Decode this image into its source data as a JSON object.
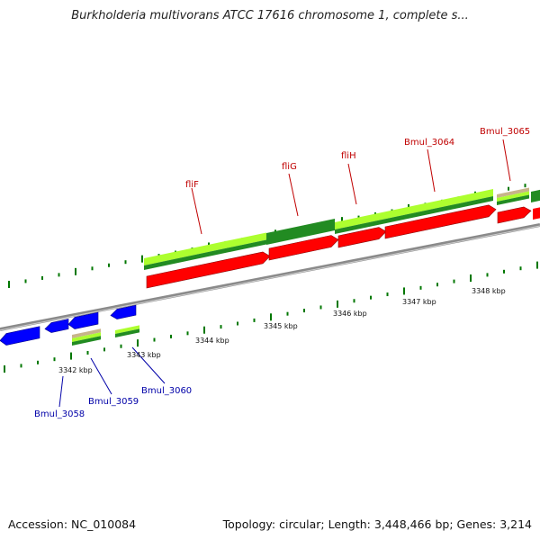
{
  "title": "Burkholderia multivorans ATCC 17616 chromosome 1, complete s...",
  "footer": {
    "accession": "Accession: NC_010084",
    "summary": "Topology: circular; Length: 3,448,466 bp; Genes: 3,214"
  },
  "colors": {
    "forward_gene": "#ff0000",
    "reverse_gene": "#0000ff",
    "track_light": "#adff2f",
    "track_dark": "#228b22",
    "track_tan": "#c8b48a",
    "backbone": "#8a8a8a",
    "tick": "#007700",
    "label_forward": "#c00000",
    "label_reverse": "#0000a8"
  },
  "scale_labels": [
    "3342 kbp",
    "3343 kbp",
    "3344 kbp",
    "3345 kbp",
    "3346 kbp",
    "3347 kbp",
    "3348 kbp"
  ],
  "gene_labels_top": [
    "fliF",
    "fliG",
    "fliH",
    "Bmul_3064",
    "Bmul_3065"
  ],
  "gene_labels_bottom": [
    "Bmul_3058",
    "Bmul_3059",
    "Bmul_3060"
  ]
}
